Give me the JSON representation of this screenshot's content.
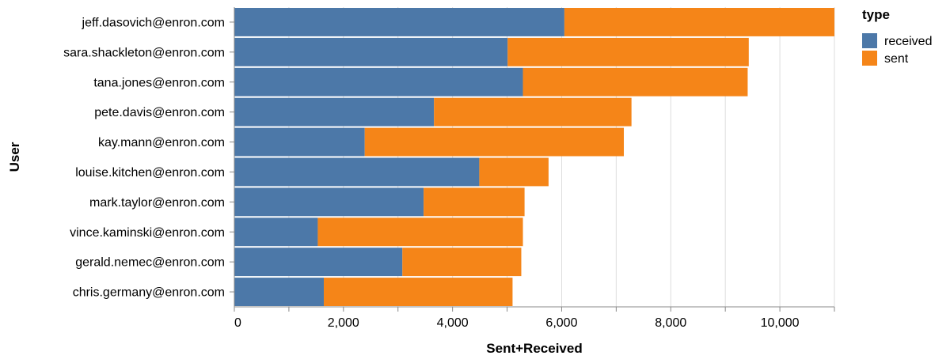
{
  "chart_data": {
    "type": "bar",
    "orientation": "horizontal",
    "stacked": true,
    "categories": [
      "jeff.dasovich@enron.com",
      "sara.shackleton@enron.com",
      "tana.jones@enron.com",
      "pete.davis@enron.com",
      "kay.mann@enron.com",
      "louise.kitchen@enron.com",
      "mark.taylor@enron.com",
      "vince.kaminski@enron.com",
      "gerald.nemec@enron.com",
      "chris.germany@enron.com"
    ],
    "series": [
      {
        "name": "received",
        "color": "#4c78a8",
        "values": [
          6050,
          5010,
          5290,
          3660,
          2390,
          4490,
          3470,
          1530,
          3080,
          1640
        ]
      },
      {
        "name": "sent",
        "color": "#f58518",
        "values": [
          4950,
          4420,
          4120,
          3620,
          4750,
          1270,
          1850,
          3760,
          2180,
          3460
        ]
      }
    ],
    "xlabel": "Sent+Received",
    "ylabel": "User",
    "xlim": [
      0,
      11000
    ],
    "x_ticks": [
      0,
      2000,
      4000,
      6000,
      8000,
      10000
    ],
    "x_tick_labels": [
      "0",
      "2,000",
      "4,000",
      "6,000",
      "8,000",
      "10,000"
    ],
    "legend": {
      "title": "type",
      "placement": "top-right"
    },
    "grid": true,
    "grid_color": "#dddddd"
  }
}
